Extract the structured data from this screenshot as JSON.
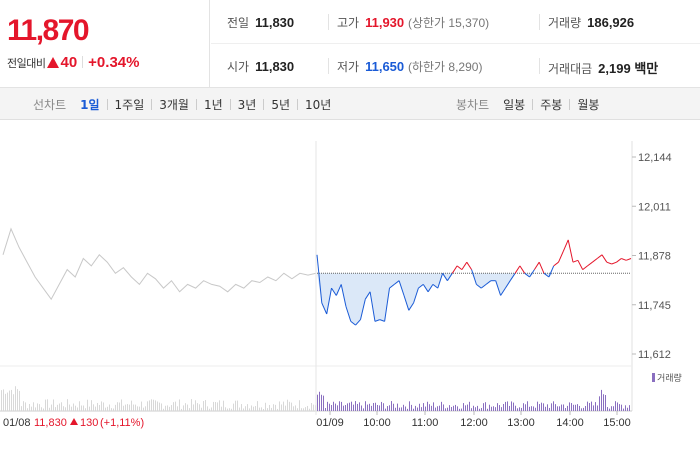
{
  "quote": {
    "price": "11,870",
    "change_label": "전일대비",
    "change_value": "40",
    "change_pct": "+0.34%"
  },
  "stats": {
    "prev_close": {
      "label": "전일",
      "value": "11,830"
    },
    "high": {
      "label": "고가",
      "value": "11,930",
      "sub": "(상한가 15,370)"
    },
    "volume": {
      "label": "거래량",
      "value": "186,926"
    },
    "open": {
      "label": "시가",
      "value": "11,830"
    },
    "low": {
      "label": "저가",
      "value": "11,650",
      "sub": "(하한가 8,290)"
    },
    "amount": {
      "label": "거래대금",
      "value": "2,199 백만"
    }
  },
  "toolbar": {
    "line_label": "선차트",
    "line_options": [
      "1일",
      "1주일",
      "3개월",
      "1년",
      "3년",
      "5년",
      "10년"
    ],
    "line_active": 0,
    "candle_label": "봉차트",
    "candle_options": [
      "일봉",
      "주봉",
      "월봉"
    ]
  },
  "colors": {
    "up": "#e4162b",
    "down": "#1a5bd6",
    "prev": "#c8c8c8",
    "fill": "#dbe8f8",
    "volume": "#8a6fc0"
  },
  "chart_data": {
    "type": "line",
    "y_ticks": [
      "12,144",
      "12,011",
      "11,878",
      "11,745",
      "11,612"
    ],
    "ylim": [
      11612,
      12144
    ],
    "reference_price": 11830,
    "x_ticks": [
      "01/09",
      "10:00",
      "11:00",
      "12:00",
      "13:00",
      "14:00",
      "15:00"
    ],
    "previous_day": {
      "date": "01/08",
      "close": "11,830",
      "change": "130",
      "change_pct": "(+1,11%)"
    },
    "volume_legend": "거래량",
    "series": [
      {
        "values": [
          11880,
          11750,
          11720,
          11790,
          11770,
          11800,
          11740,
          11700,
          11690,
          11705,
          11760,
          11780,
          11700,
          11705,
          11700,
          11790,
          11800,
          11810,
          11770,
          11730,
          11750,
          11790,
          11800,
          11780,
          11800,
          11790,
          11830,
          11810,
          11830,
          11850,
          11840,
          11860,
          11840,
          11800,
          11790,
          11800,
          11810,
          11810,
          11770,
          11790,
          11810,
          11830,
          11850,
          11830,
          11820,
          11840,
          11860,
          11830,
          11820,
          11850,
          11860,
          11890,
          11920,
          11860,
          11865,
          11840,
          11850,
          11860,
          11870,
          11880,
          11860,
          11855,
          11860,
          11870,
          11865,
          11870
        ]
      }
    ]
  }
}
